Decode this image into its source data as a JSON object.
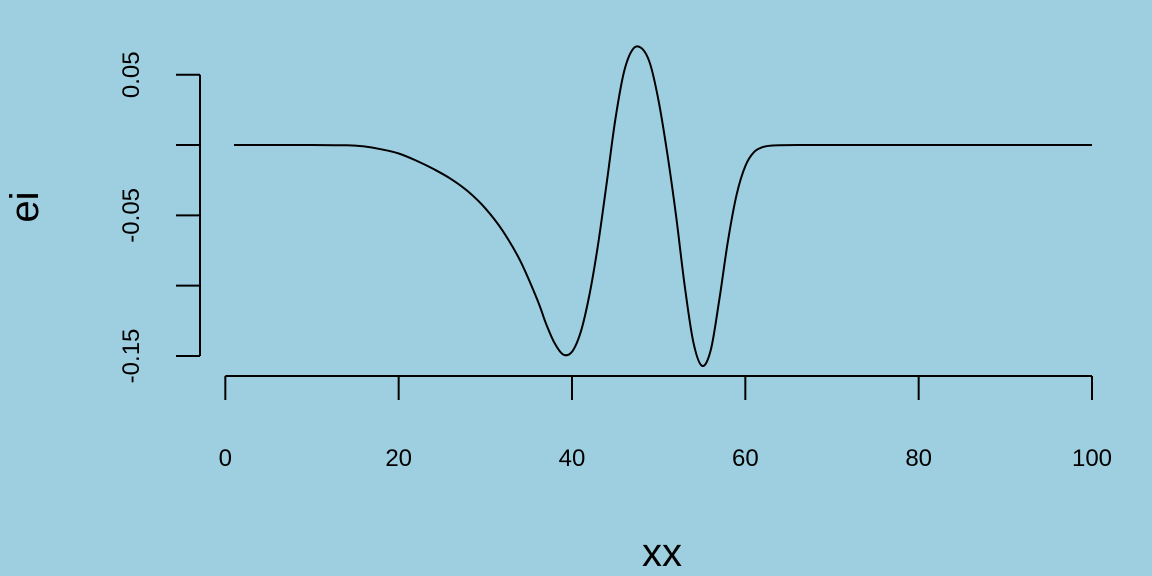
{
  "background_color": "#9ecfe1",
  "line_color": "#000000",
  "chart_data": {
    "type": "line",
    "xlabel": "xx",
    "ylabel": "ei",
    "xlim": [
      1,
      100
    ],
    "ylim": [
      -0.155,
      0.069
    ],
    "x_ticks": [
      0,
      20,
      40,
      60,
      80,
      100
    ],
    "x_tick_labels": [
      "0",
      "20",
      "40",
      "60",
      "80",
      "100"
    ],
    "y_ticks": [
      -0.15,
      -0.1,
      -0.05,
      0.0,
      0.05
    ],
    "y_tick_labels": [
      "-0.15",
      "",
      "-0.05",
      "",
      "0.05"
    ],
    "grid": false,
    "series": [
      {
        "x": [
          1,
          5,
          10,
          14,
          16,
          18,
          20,
          22,
          24,
          26,
          28,
          30,
          32,
          34,
          36,
          37,
          38,
          39,
          40,
          41,
          42,
          43,
          44,
          45,
          46,
          47,
          48,
          49,
          50,
          51,
          52,
          53,
          54,
          55,
          56,
          57,
          58,
          59,
          60,
          61,
          62,
          63,
          64,
          66,
          70,
          80,
          90,
          100
        ],
        "y": [
          0,
          0,
          0,
          -0.0002,
          -0.001,
          -0.003,
          -0.006,
          -0.011,
          -0.017,
          -0.024,
          -0.033,
          -0.045,
          -0.061,
          -0.082,
          -0.11,
          -0.127,
          -0.141,
          -0.149,
          -0.147,
          -0.133,
          -0.107,
          -0.071,
          -0.027,
          0.018,
          0.052,
          0.068,
          0.069,
          0.058,
          0.031,
          -0.006,
          -0.05,
          -0.1,
          -0.14,
          -0.157,
          -0.146,
          -0.11,
          -0.068,
          -0.035,
          -0.015,
          -0.005,
          -0.0015,
          -0.0004,
          -0.0001,
          0,
          0,
          0,
          0,
          0
        ]
      }
    ]
  }
}
